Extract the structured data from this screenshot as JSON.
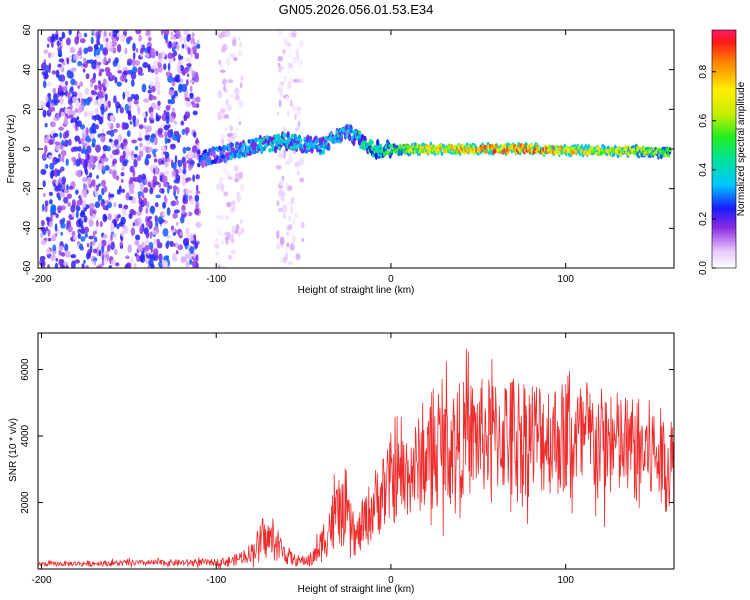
{
  "figure_title": "GN05.2026.056.01.53.E34",
  "colors": {
    "line": "#ee2b2b",
    "axis": "#000000",
    "sparse_dot": "#b79af2",
    "dense_dot": "#7a2be6",
    "ridge_mid": "#00d2d2",
    "ridge_peak": "#ff2020"
  },
  "chart_data": [
    {
      "type": "heatmap",
      "title": "GN05.2026.056.01.53.E34",
      "xlabel": "Height of straight line (km)",
      "ylabel": "Frequency (Hz)",
      "xlim": [
        -202,
        162
      ],
      "ylim": [
        -60,
        60
      ],
      "xticks": [
        -200,
        -100,
        0,
        100
      ],
      "yticks": [
        -60,
        -40,
        -20,
        0,
        20,
        40,
        60
      ],
      "grid": false,
      "description_series": [
        {
          "name": "noise region",
          "x_range": [
            -200,
            -110
          ],
          "frequency_range": [
            -60,
            60
          ],
          "amplitude": 0.15
        },
        {
          "name": "sparse noise band",
          "x_range": [
            -100,
            -85
          ],
          "frequency_range": [
            -60,
            60
          ],
          "amplitude": 0.05
        },
        {
          "name": "sparse noise band",
          "x_range": [
            -65,
            -50
          ],
          "frequency_range": [
            -60,
            60
          ],
          "amplitude": 0.05
        },
        {
          "name": "doppler ridge",
          "x": [
            -110,
            -80,
            -60,
            -40,
            -25,
            -10,
            0,
            20,
            50,
            80,
            110,
            140,
            160
          ],
          "frequency": [
            -5,
            1,
            4,
            1,
            9,
            0,
            0,
            0,
            0,
            0,
            -1,
            -1,
            -2
          ],
          "amplitude": [
            0.3,
            0.4,
            0.45,
            0.4,
            0.4,
            0.55,
            0.6,
            0.8,
            0.9,
            0.95,
            0.8,
            0.7,
            0.6
          ]
        }
      ],
      "colorbar": {
        "label": "Normalized spectral amplitude",
        "range": [
          0.0,
          0.97
        ],
        "ticks": [
          0.0,
          0.2,
          0.4,
          0.6,
          0.8
        ],
        "tick_labels": [
          "0.0",
          "0.2",
          "0.4",
          "0.6",
          "0.8"
        ]
      },
      "tick_labels_x": [
        "-200",
        "-100",
        "0",
        "100"
      ],
      "tick_labels_y": [
        "-60",
        "-40",
        "-20",
        "0",
        "20",
        "40",
        "60"
      ]
    },
    {
      "type": "line",
      "title": "",
      "xlabel": "Height of straight line (km)",
      "ylabel": "SNR (10 * v/v)",
      "xlim": [
        -202,
        162
      ],
      "ylim": [
        0,
        7100
      ],
      "xticks": [
        -200,
        -100,
        0,
        100
      ],
      "yticks": [
        2000,
        4000,
        6000
      ],
      "tick_labels_x": [
        "-200",
        "-100",
        "0",
        "100"
      ],
      "tick_labels_y": [
        "2000",
        "4000",
        "6000"
      ],
      "grid": false,
      "envelope": {
        "x": [
          -200,
          -150,
          -100,
          -90,
          -80,
          -75,
          -70,
          -65,
          -60,
          -55,
          -50,
          -45,
          -40,
          -35,
          -30,
          -25,
          -20,
          -15,
          -10,
          -5,
          0,
          10,
          20,
          30,
          40,
          50,
          60,
          70,
          80,
          90,
          100,
          110,
          120,
          130,
          140,
          150,
          160
        ],
        "mean": [
          150,
          180,
          200,
          250,
          500,
          800,
          900,
          700,
          450,
          250,
          250,
          300,
          700,
          1300,
          1700,
          1500,
          900,
          1400,
          1900,
          2300,
          2600,
          2900,
          3300,
          3700,
          3900,
          4000,
          4000,
          4100,
          4000,
          4000,
          3900,
          3900,
          3800,
          3700,
          3600,
          3500,
          3100
        ],
        "spread": [
          90,
          110,
          130,
          200,
          350,
          650,
          750,
          600,
          380,
          220,
          200,
          280,
          650,
          1100,
          1300,
          1100,
          700,
          1000,
          1300,
          1500,
          1600,
          1700,
          1900,
          2100,
          2200,
          2200,
          2200,
          2300,
          2300,
          2200,
          2200,
          2200,
          2100,
          2100,
          2000,
          2000,
          1800
        ]
      }
    }
  ]
}
